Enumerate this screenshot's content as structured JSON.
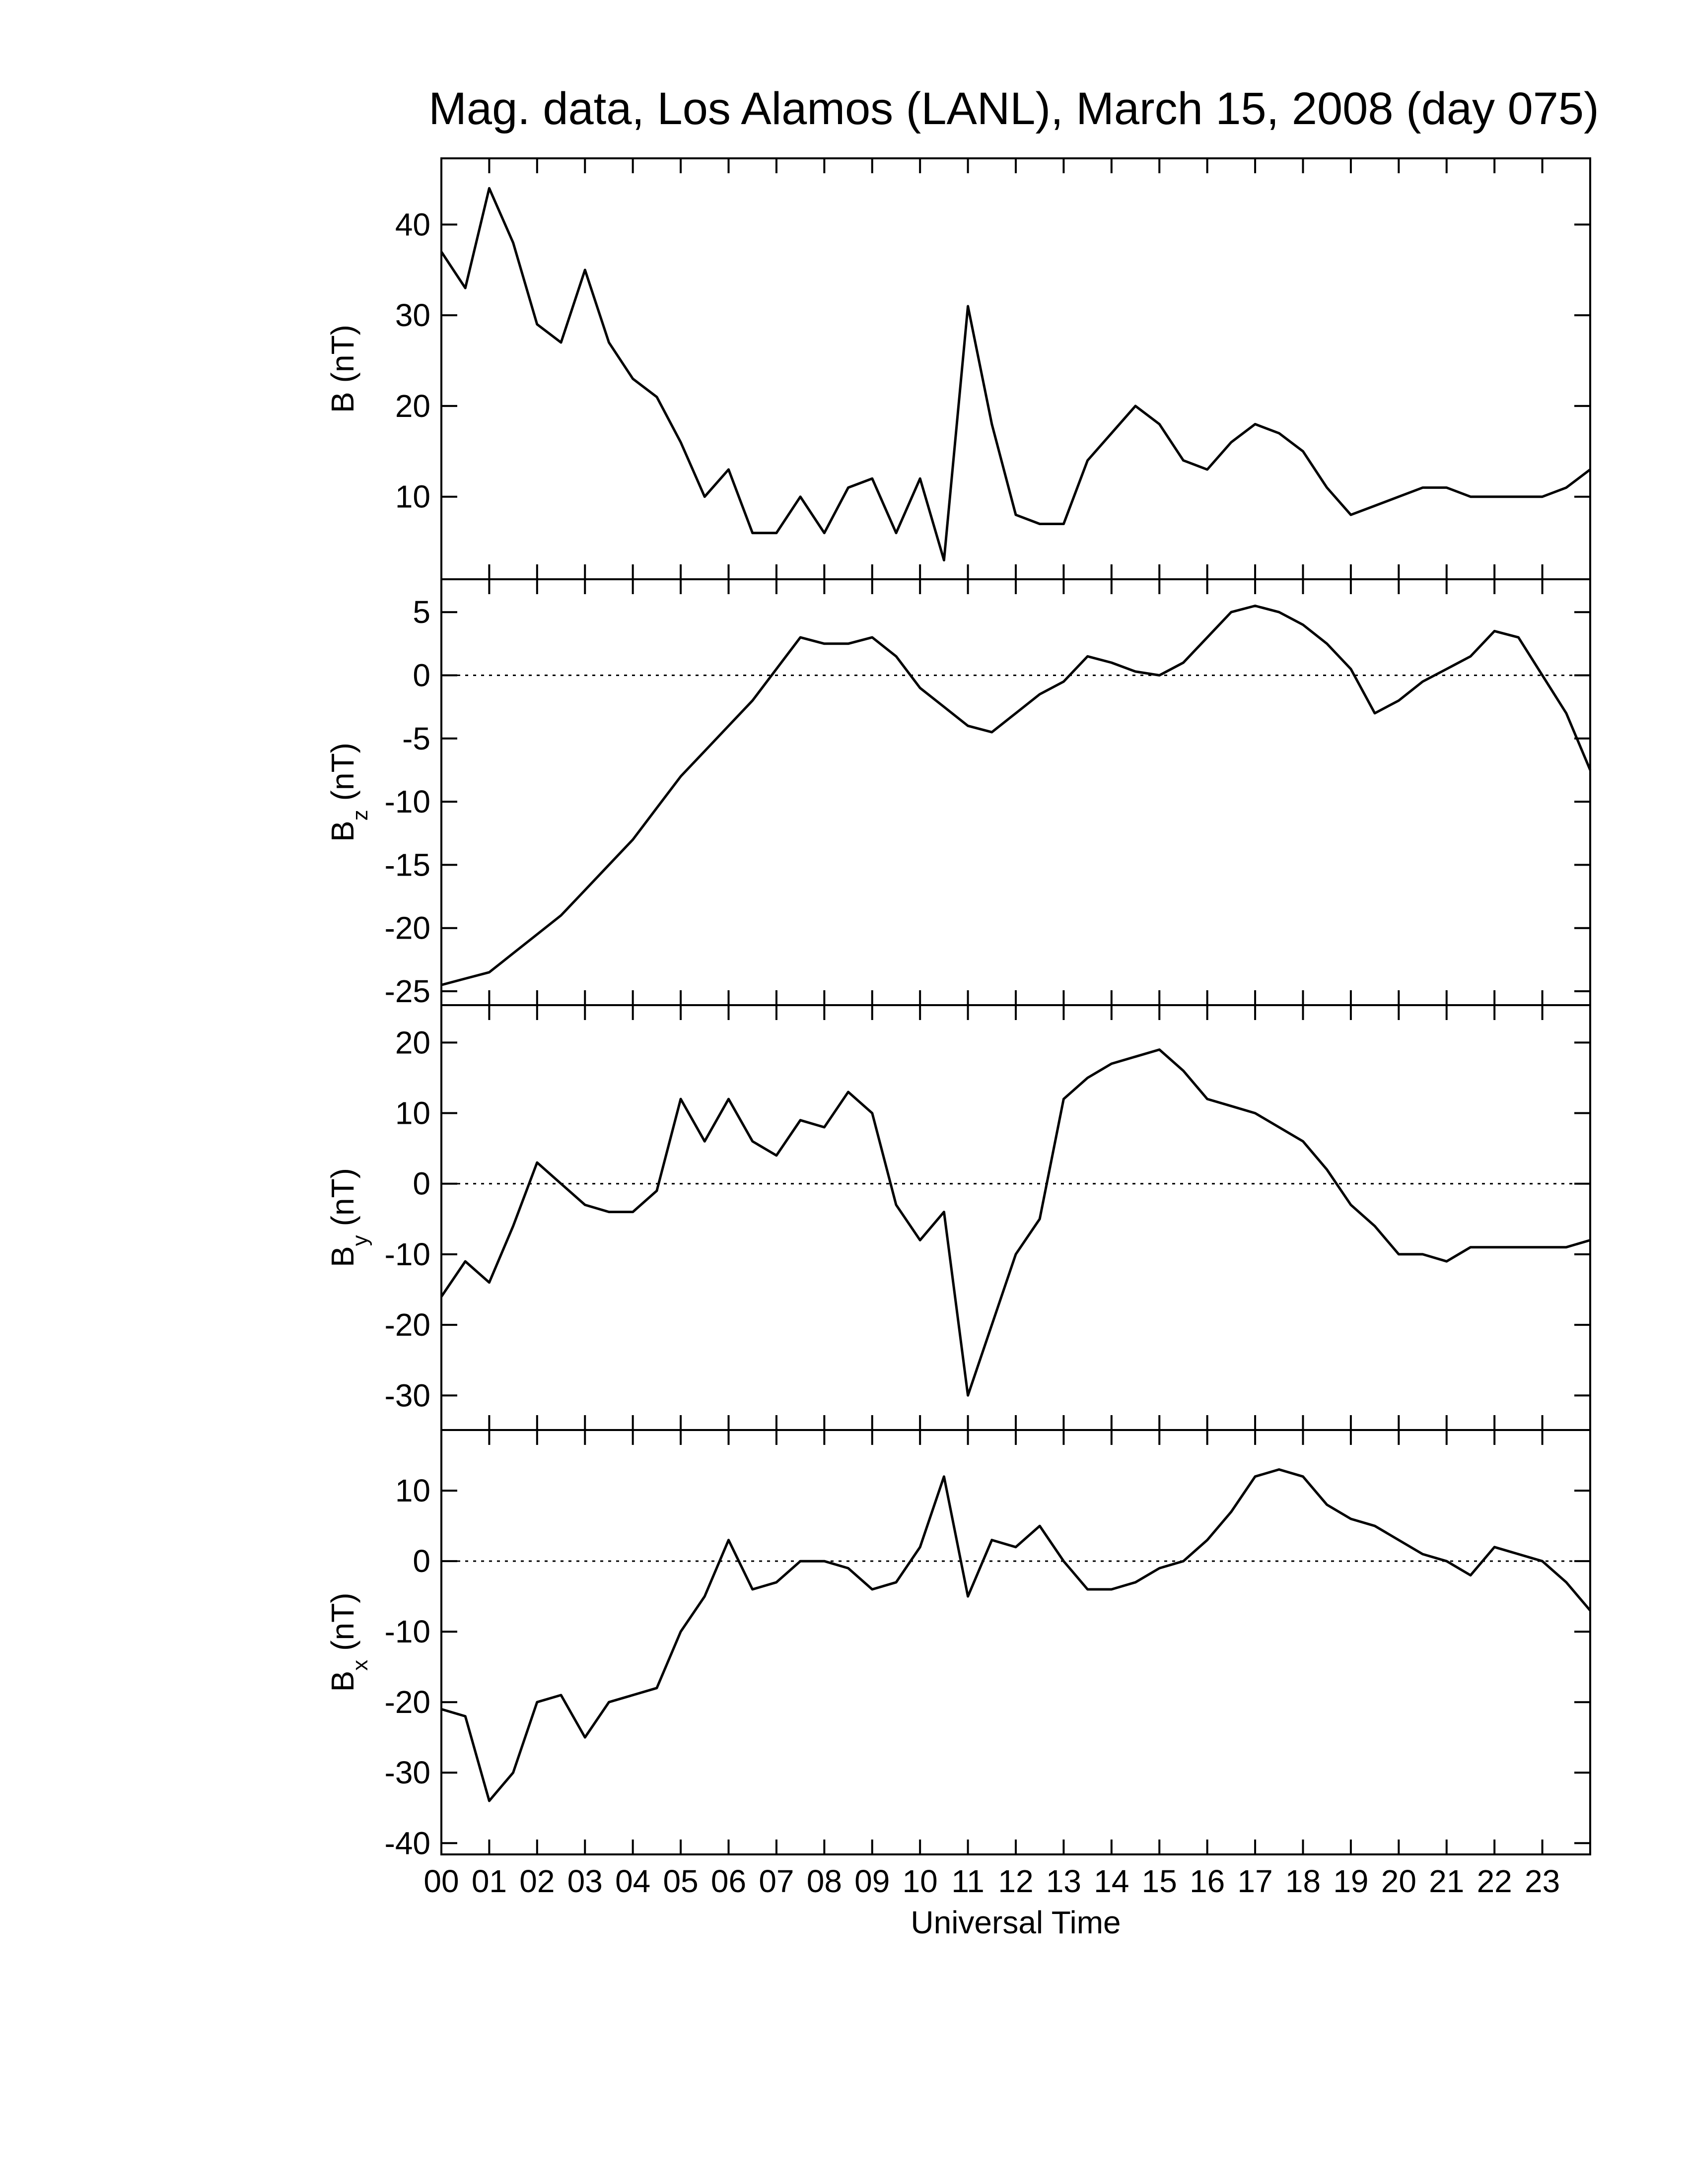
{
  "chart_data": [
    {
      "type": "line",
      "title": "Mag. data, Los Alamos (LANL), March 15, 2008 (day 075)",
      "ylabel": "B",
      "ylabel_units": "(nT)",
      "color": "#000000",
      "xlim": [
        0,
        24
      ],
      "ylim": [
        0.9,
        47.3
      ],
      "yticks": [
        10,
        20,
        30,
        40
      ],
      "x": [
        0,
        0.5,
        1,
        1.5,
        2,
        2.5,
        3,
        3.5,
        4,
        4.5,
        5,
        5.5,
        6,
        6.5,
        7,
        7.5,
        8,
        8.5,
        9,
        9.5,
        10,
        10.5,
        11,
        11.5,
        12,
        12.5,
        13,
        13.5,
        14,
        14.5,
        15,
        15.5,
        16,
        16.5,
        17,
        17.5,
        18,
        18.5,
        19,
        19.5,
        20,
        20.5,
        21,
        21.5,
        22,
        22.5,
        23,
        23.5,
        24
      ],
      "values": [
        37,
        33,
        44,
        38,
        29,
        27,
        35,
        27,
        23,
        21,
        16,
        10,
        13,
        6,
        6,
        10,
        6,
        11,
        12,
        6,
        12,
        3,
        31,
        18,
        8,
        7,
        7,
        14,
        17,
        20,
        18,
        14,
        13,
        16,
        18,
        17,
        15,
        11,
        8,
        9,
        10,
        11,
        11,
        10,
        10,
        10,
        10,
        11,
        13
      ]
    },
    {
      "type": "line",
      "ylabel": "B",
      "ylabel_subscript": "z",
      "ylabel_units": "(nT)",
      "color": "#000000",
      "xlim": [
        0,
        24
      ],
      "ylim": [
        -26.1,
        7.6
      ],
      "yticks": [
        -25,
        -20,
        -15,
        -10,
        -5,
        0,
        5
      ],
      "hline": 0,
      "x": [
        0,
        0.5,
        1,
        1.5,
        2,
        2.5,
        3,
        3.5,
        4,
        4.5,
        5,
        5.5,
        6,
        6.5,
        7,
        7.5,
        8,
        8.5,
        9,
        9.5,
        10,
        10.5,
        11,
        11.5,
        12,
        12.5,
        13,
        13.5,
        14,
        14.5,
        15,
        15.5,
        16,
        16.5,
        17,
        17.5,
        18,
        18.5,
        19,
        19.5,
        20,
        20.5,
        21,
        21.5,
        22,
        22.5,
        23,
        23.5,
        24
      ],
      "values": [
        -24.5,
        -24,
        -23.5,
        -22,
        -20.5,
        -19,
        -17,
        -15,
        -13,
        -10.5,
        -8,
        -6,
        -4,
        -2,
        0.5,
        3,
        2.5,
        2.5,
        3,
        1.5,
        -1,
        -2.5,
        -4,
        -4.5,
        -3,
        -1.5,
        -0.5,
        1.5,
        1,
        0.3,
        0,
        1,
        3,
        5,
        5.5,
        5,
        4,
        2.5,
        0.5,
        -3,
        -2,
        -0.5,
        0.5,
        1.5,
        3.5,
        3,
        0,
        -3,
        -7.5
      ]
    },
    {
      "type": "line",
      "ylabel": "B",
      "ylabel_subscript": "y",
      "ylabel_units": "(nT)",
      "color": "#000000",
      "xlim": [
        0,
        24
      ],
      "ylim": [
        -34.9,
        25.3
      ],
      "yticks": [
        -30,
        -20,
        -10,
        0,
        10,
        20
      ],
      "hline": 0,
      "x": [
        0,
        0.5,
        1,
        1.5,
        2,
        2.5,
        3,
        3.5,
        4,
        4.5,
        5,
        5.5,
        6,
        6.5,
        7,
        7.5,
        8,
        8.5,
        9,
        9.5,
        10,
        10.5,
        11,
        11.5,
        12,
        12.5,
        13,
        13.5,
        14,
        14.5,
        15,
        15.5,
        16,
        16.5,
        17,
        17.5,
        18,
        18.5,
        19,
        19.5,
        20,
        20.5,
        21,
        21.5,
        22,
        22.5,
        23,
        23.5,
        24
      ],
      "values": [
        -16,
        -11,
        -14,
        -6,
        3,
        0,
        -3,
        -4,
        -4,
        -1,
        12,
        6,
        12,
        6,
        4,
        9,
        8,
        13,
        10,
        -3,
        -8,
        -4,
        -30,
        -20,
        -10,
        -5,
        12,
        15,
        17,
        18,
        19,
        16,
        12,
        11,
        10,
        8,
        6,
        2,
        -3,
        -6,
        -10,
        -10,
        -11,
        -9,
        -9,
        -9,
        -9,
        -9,
        -8
      ]
    },
    {
      "type": "line",
      "ylabel": "B",
      "ylabel_subscript": "x",
      "ylabel_units": "(nT)",
      "xlabel": "Universal Time",
      "color": "#000000",
      "xlim": [
        0,
        24
      ],
      "ylim": [
        -41.6,
        18.6
      ],
      "yticks": [
        -40,
        -30,
        -20,
        -10,
        0,
        10
      ],
      "hline": 0,
      "xticks": [
        {
          "value": 0,
          "label": "00"
        },
        {
          "value": 1,
          "label": "01"
        },
        {
          "value": 2,
          "label": "02"
        },
        {
          "value": 3,
          "label": "03"
        },
        {
          "value": 4,
          "label": "04"
        },
        {
          "value": 5,
          "label": "05"
        },
        {
          "value": 6,
          "label": "06"
        },
        {
          "value": 7,
          "label": "07"
        },
        {
          "value": 8,
          "label": "08"
        },
        {
          "value": 9,
          "label": "09"
        },
        {
          "value": 10,
          "label": "10"
        },
        {
          "value": 11,
          "label": "11"
        },
        {
          "value": 12,
          "label": "12"
        },
        {
          "value": 13,
          "label": "13"
        },
        {
          "value": 14,
          "label": "14"
        },
        {
          "value": 15,
          "label": "15"
        },
        {
          "value": 16,
          "label": "16"
        },
        {
          "value": 17,
          "label": "17"
        },
        {
          "value": 18,
          "label": "18"
        },
        {
          "value": 19,
          "label": "19"
        },
        {
          "value": 20,
          "label": "20"
        },
        {
          "value": 21,
          "label": "21"
        },
        {
          "value": 22,
          "label": "22"
        },
        {
          "value": 23,
          "label": "23"
        }
      ],
      "x": [
        0,
        0.5,
        1,
        1.5,
        2,
        2.5,
        3,
        3.5,
        4,
        4.5,
        5,
        5.5,
        6,
        6.5,
        7,
        7.5,
        8,
        8.5,
        9,
        9.5,
        10,
        10.5,
        11,
        11.5,
        12,
        12.5,
        13,
        13.5,
        14,
        14.5,
        15,
        15.5,
        16,
        16.5,
        17,
        17.5,
        18,
        18.5,
        19,
        19.5,
        20,
        20.5,
        21,
        21.5,
        22,
        22.5,
        23,
        23.5,
        24
      ],
      "values": [
        -21,
        -22,
        -34,
        -30,
        -20,
        -19,
        -25,
        -20,
        -19,
        -18,
        -10,
        -5,
        3,
        -4,
        -3,
        0,
        0,
        -1,
        -4,
        -3,
        2,
        12,
        -5,
        3,
        2,
        5,
        0,
        -4,
        -4,
        -3,
        -1,
        0,
        3,
        7,
        12,
        13,
        12,
        8,
        6,
        5,
        3,
        1,
        0,
        -2,
        2,
        1,
        0,
        -3,
        -7
      ]
    }
  ]
}
